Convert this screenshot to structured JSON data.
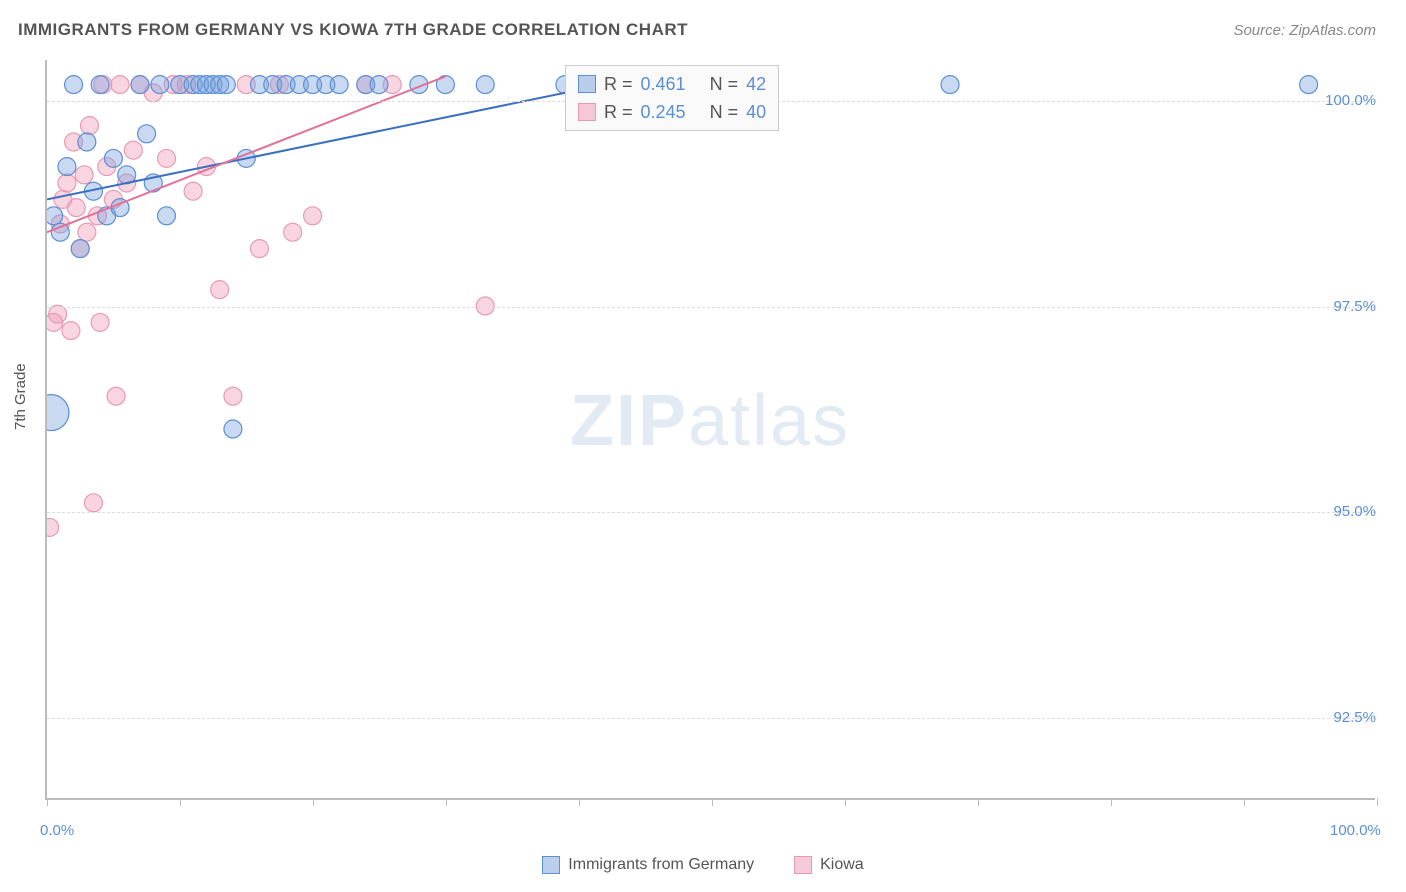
{
  "title": "IMMIGRANTS FROM GERMANY VS KIOWA 7TH GRADE CORRELATION CHART",
  "source": "Source: ZipAtlas.com",
  "watermark_zip": "ZIP",
  "watermark_atlas": "atlas",
  "y_axis_title": "7th Grade",
  "chart": {
    "type": "scatter",
    "xlim": [
      0,
      100
    ],
    "ylim": [
      91.5,
      100.5
    ],
    "x_tick_positions": [
      0,
      10,
      20,
      30,
      40,
      50,
      60,
      70,
      80,
      90,
      100
    ],
    "x_tick_labels_shown": {
      "0": "0.0%",
      "100": "100.0%"
    },
    "y_ticks": [
      92.5,
      95.0,
      97.5,
      100.0
    ],
    "y_tick_labels": [
      "92.5%",
      "95.0%",
      "97.5%",
      "100.0%"
    ],
    "grid_color": "#dddddd",
    "axis_color": "#bbbbbb",
    "background_color": "#ffffff",
    "tick_label_color": "#5b8fd6",
    "title_color": "#555555",
    "title_fontsize": 17
  },
  "series": [
    {
      "name": "Immigrants from Germany",
      "color_fill": "rgba(120,160,220,0.4)",
      "color_stroke": "#5b8fd6",
      "marker": "circle",
      "default_r": 9,
      "R": "0.461",
      "N": "42",
      "trend": {
        "x1": 0,
        "y1": 98.8,
        "x2": 45,
        "y2": 100.3,
        "stroke": "#3b6fc0",
        "width": 2
      },
      "points": [
        {
          "x": 0.3,
          "y": 96.2,
          "r": 18
        },
        {
          "x": 0.5,
          "y": 98.6
        },
        {
          "x": 1,
          "y": 98.4
        },
        {
          "x": 1.5,
          "y": 99.2
        },
        {
          "x": 2,
          "y": 100.2
        },
        {
          "x": 2.5,
          "y": 98.2
        },
        {
          "x": 3,
          "y": 99.5
        },
        {
          "x": 3.5,
          "y": 98.9
        },
        {
          "x": 4,
          "y": 100.2
        },
        {
          "x": 4.5,
          "y": 98.6
        },
        {
          "x": 5,
          "y": 99.3
        },
        {
          "x": 5.5,
          "y": 98.7
        },
        {
          "x": 6,
          "y": 99.1
        },
        {
          "x": 7,
          "y": 100.2
        },
        {
          "x": 7.5,
          "y": 99.6
        },
        {
          "x": 8,
          "y": 99.0
        },
        {
          "x": 8.5,
          "y": 100.2
        },
        {
          "x": 9,
          "y": 98.6
        },
        {
          "x": 10,
          "y": 100.2
        },
        {
          "x": 11,
          "y": 100.2
        },
        {
          "x": 11.5,
          "y": 100.2
        },
        {
          "x": 12,
          "y": 100.2
        },
        {
          "x": 12.5,
          "y": 100.2
        },
        {
          "x": 13,
          "y": 100.2
        },
        {
          "x": 13.5,
          "y": 100.2
        },
        {
          "x": 14,
          "y": 96.0
        },
        {
          "x": 15,
          "y": 99.3
        },
        {
          "x": 16,
          "y": 100.2
        },
        {
          "x": 17,
          "y": 100.2
        },
        {
          "x": 18,
          "y": 100.2
        },
        {
          "x": 19,
          "y": 100.2
        },
        {
          "x": 20,
          "y": 100.2
        },
        {
          "x": 21,
          "y": 100.2
        },
        {
          "x": 22,
          "y": 100.2
        },
        {
          "x": 24,
          "y": 100.2
        },
        {
          "x": 25,
          "y": 100.2
        },
        {
          "x": 28,
          "y": 100.2
        },
        {
          "x": 30,
          "y": 100.2
        },
        {
          "x": 33,
          "y": 100.2
        },
        {
          "x": 39,
          "y": 100.2
        },
        {
          "x": 68,
          "y": 100.2
        },
        {
          "x": 95,
          "y": 100.2
        }
      ]
    },
    {
      "name": "Kiowa",
      "color_fill": "rgba(240,150,180,0.4)",
      "color_stroke": "#e89ab5",
      "marker": "circle",
      "default_r": 9,
      "R": "0.245",
      "N": "40",
      "trend": {
        "x1": 0,
        "y1": 98.4,
        "x2": 30,
        "y2": 100.3,
        "stroke": "#e37098",
        "width": 2
      },
      "points": [
        {
          "x": 0.2,
          "y": 94.8
        },
        {
          "x": 0.5,
          "y": 97.3
        },
        {
          "x": 0.8,
          "y": 97.4
        },
        {
          "x": 1,
          "y": 98.5
        },
        {
          "x": 1.2,
          "y": 98.8
        },
        {
          "x": 1.5,
          "y": 99.0
        },
        {
          "x": 1.8,
          "y": 97.2
        },
        {
          "x": 2,
          "y": 99.5
        },
        {
          "x": 2.2,
          "y": 98.7
        },
        {
          "x": 2.5,
          "y": 98.2
        },
        {
          "x": 2.8,
          "y": 99.1
        },
        {
          "x": 3,
          "y": 98.4
        },
        {
          "x": 3.2,
          "y": 99.7
        },
        {
          "x": 3.5,
          "y": 95.1
        },
        {
          "x": 3.8,
          "y": 98.6
        },
        {
          "x": 4,
          "y": 97.3
        },
        {
          "x": 4.2,
          "y": 100.2
        },
        {
          "x": 4.5,
          "y": 99.2
        },
        {
          "x": 5,
          "y": 98.8
        },
        {
          "x": 5.2,
          "y": 96.4
        },
        {
          "x": 5.5,
          "y": 100.2
        },
        {
          "x": 6,
          "y": 99.0
        },
        {
          "x": 6.5,
          "y": 99.4
        },
        {
          "x": 7,
          "y": 100.2
        },
        {
          "x": 8,
          "y": 100.1
        },
        {
          "x": 9,
          "y": 99.3
        },
        {
          "x": 9.5,
          "y": 100.2
        },
        {
          "x": 10.5,
          "y": 100.2
        },
        {
          "x": 11,
          "y": 98.9
        },
        {
          "x": 12,
          "y": 99.2
        },
        {
          "x": 13,
          "y": 97.7
        },
        {
          "x": 14,
          "y": 96.4
        },
        {
          "x": 15,
          "y": 100.2
        },
        {
          "x": 16,
          "y": 98.2
        },
        {
          "x": 17.5,
          "y": 100.2
        },
        {
          "x": 18.5,
          "y": 98.4
        },
        {
          "x": 20,
          "y": 98.6
        },
        {
          "x": 24,
          "y": 100.2
        },
        {
          "x": 26,
          "y": 100.2
        },
        {
          "x": 33,
          "y": 97.5
        }
      ]
    }
  ],
  "legend_stats": {
    "r_label": "R =",
    "n_label": "N ="
  },
  "bottom_legend": [
    {
      "label": "Immigrants from Germany",
      "color_fill": "rgba(120,160,220,0.5)",
      "color_stroke": "#5b8fd6"
    },
    {
      "label": "Kiowa",
      "color_fill": "rgba(240,150,180,0.5)",
      "color_stroke": "#e89ab5"
    }
  ]
}
